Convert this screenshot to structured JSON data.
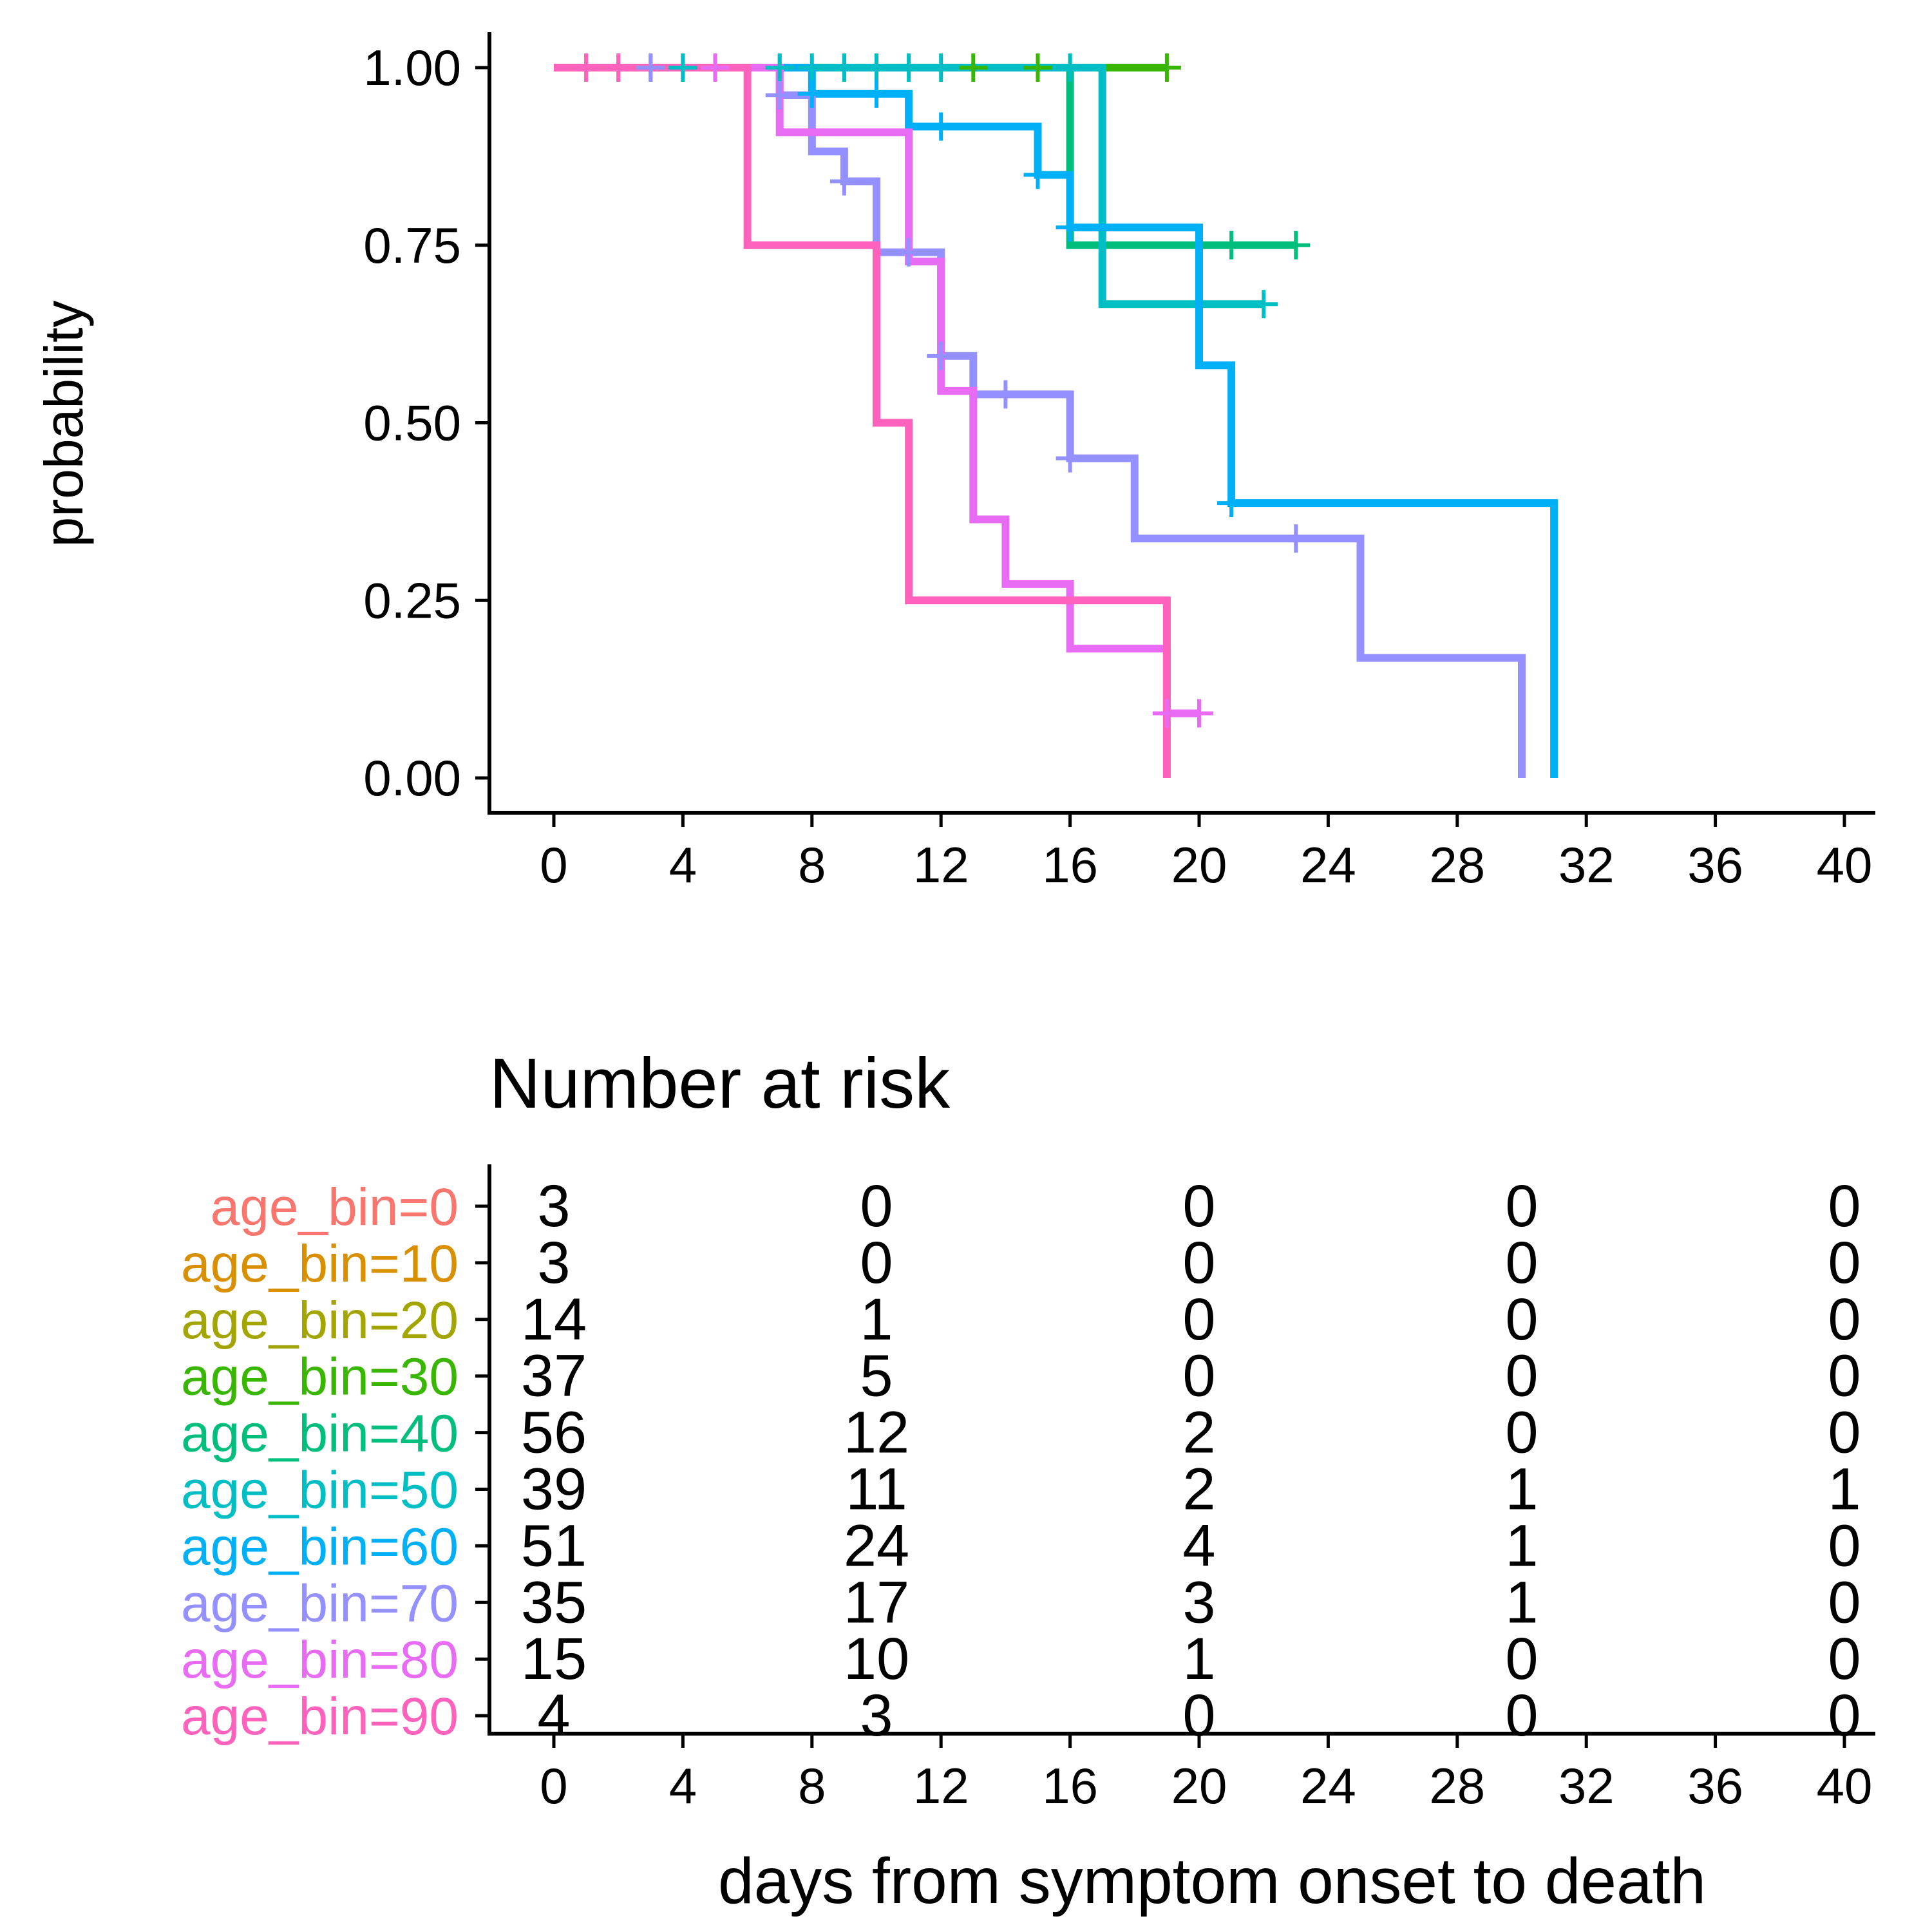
{
  "chart_data": [
    {
      "type": "line",
      "subtype": "kaplan-meier",
      "ylabel": "probability",
      "xlabel": "",
      "xlim": [
        0,
        40
      ],
      "ylim": [
        0,
        1
      ],
      "x_ticks": [
        0,
        4,
        8,
        12,
        16,
        20,
        24,
        28,
        32,
        36,
        40
      ],
      "y_ticks": [
        "0.00",
        "0.25",
        "0.50",
        "0.75",
        "1.00"
      ],
      "grid": false,
      "legend": "none",
      "series": [
        {
          "name": "age_bin=0",
          "color": "#F8766D",
          "steps": [
            [
              0,
              1
            ],
            [
              1,
              1
            ]
          ],
          "censors": [
            [
              1,
              1
            ]
          ]
        },
        {
          "name": "age_bin=10",
          "color": "#D89000",
          "steps": [
            [
              0,
              1
            ],
            [
              2,
              1
            ]
          ],
          "censors": [
            [
              2,
              1
            ]
          ]
        },
        {
          "name": "age_bin=20",
          "color": "#A3A500",
          "steps": [
            [
              0,
              1
            ],
            [
              7,
              1
            ]
          ],
          "censors": [
            [
              1,
              1
            ],
            [
              3,
              1
            ],
            [
              7,
              1
            ]
          ]
        },
        {
          "name": "age_bin=30",
          "color": "#39B600",
          "steps": [
            [
              0,
              1
            ],
            [
              19,
              1
            ]
          ],
          "censors": [
            [
              13,
              1
            ],
            [
              15,
              1
            ],
            [
              19,
              1
            ]
          ]
        },
        {
          "name": "age_bin=40",
          "color": "#00BF7D",
          "steps": [
            [
              0,
              1
            ],
            [
              16,
              1
            ],
            [
              16,
              0.75
            ],
            [
              23,
              0.75
            ]
          ],
          "censors": [
            [
              4,
              1
            ],
            [
              9,
              1
            ],
            [
              16,
              1
            ],
            [
              21,
              0.75
            ],
            [
              23,
              0.75
            ]
          ]
        },
        {
          "name": "age_bin=50",
          "color": "#00BFC4",
          "steps": [
            [
              0,
              1
            ],
            [
              17,
              1
            ],
            [
              17,
              0.667
            ],
            [
              22,
              0.667
            ]
          ],
          "censors": [
            [
              4,
              1
            ],
            [
              7,
              1
            ],
            [
              8,
              1
            ],
            [
              9,
              1
            ],
            [
              10,
              1
            ],
            [
              11,
              1
            ],
            [
              12,
              1
            ],
            [
              16,
              1
            ],
            [
              22,
              0.667
            ]
          ]
        },
        {
          "name": "age_bin=60",
          "color": "#00B0F6",
          "steps": [
            [
              0,
              1
            ],
            [
              8,
              1
            ],
            [
              8,
              0.963
            ],
            [
              11,
              0.963
            ],
            [
              11,
              0.917
            ],
            [
              15,
              0.917
            ],
            [
              15,
              0.849
            ],
            [
              16,
              0.849
            ],
            [
              16,
              0.775
            ],
            [
              20,
              0.775
            ],
            [
              20,
              0.581
            ],
            [
              21,
              0.581
            ],
            [
              21,
              0.387
            ],
            [
              31,
              0.387
            ],
            [
              31,
              0
            ]
          ],
          "censors": [
            [
              8,
              0.963
            ],
            [
              10,
              0.963
            ],
            [
              12,
              0.917
            ],
            [
              15,
              0.849
            ],
            [
              16,
              0.775
            ],
            [
              21,
              0.387
            ]
          ]
        },
        {
          "name": "age_bin=70",
          "color": "#9590FF",
          "steps": [
            [
              0,
              1
            ],
            [
              7,
              1
            ],
            [
              7,
              0.961
            ],
            [
              8,
              0.961
            ],
            [
              8,
              0.882
            ],
            [
              9,
              0.882
            ],
            [
              9,
              0.84
            ],
            [
              10,
              0.84
            ],
            [
              10,
              0.74
            ],
            [
              12,
              0.74
            ],
            [
              12,
              0.594
            ],
            [
              13,
              0.594
            ],
            [
              13,
              0.54
            ],
            [
              16,
              0.54
            ],
            [
              16,
              0.45
            ],
            [
              18,
              0.45
            ],
            [
              18,
              0.337
            ],
            [
              25,
              0.337
            ],
            [
              25,
              0.169
            ],
            [
              30,
              0.169
            ],
            [
              30,
              0
            ]
          ],
          "censors": [
            [
              3,
              1
            ],
            [
              7,
              0.961
            ],
            [
              9,
              0.84
            ],
            [
              11,
              0.74
            ],
            [
              12,
              0.594
            ],
            [
              14,
              0.54
            ],
            [
              16,
              0.45
            ],
            [
              23,
              0.337
            ]
          ]
        },
        {
          "name": "age_bin=80",
          "color": "#E76BF3",
          "steps": [
            [
              0,
              1
            ],
            [
              7,
              1
            ],
            [
              7,
              0.909
            ],
            [
              11,
              0.909
            ],
            [
              11,
              0.727
            ],
            [
              12,
              0.727
            ],
            [
              12,
              0.545
            ],
            [
              13,
              0.545
            ],
            [
              13,
              0.364
            ],
            [
              14,
              0.364
            ],
            [
              14,
              0.273
            ],
            [
              16,
              0.273
            ],
            [
              16,
              0.182
            ],
            [
              19,
              0.182
            ],
            [
              19,
              0.091
            ],
            [
              20,
              0.091
            ]
          ],
          "censors": [
            [
              5,
              1
            ],
            [
              19,
              0.091
            ],
            [
              20,
              0.091
            ]
          ]
        },
        {
          "name": "age_bin=90",
          "color": "#FF62BC",
          "steps": [
            [
              0,
              1
            ],
            [
              6,
              1
            ],
            [
              6,
              0.75
            ],
            [
              10,
              0.75
            ],
            [
              10,
              0.5
            ],
            [
              11,
              0.5
            ],
            [
              11,
              0.25
            ],
            [
              19,
              0.25
            ],
            [
              19,
              0
            ]
          ],
          "censors": [
            [
              1,
              1
            ],
            [
              2,
              1
            ]
          ]
        }
      ]
    },
    {
      "type": "table",
      "title": "Number at risk",
      "xlabel": "days from symptom onset to death",
      "xlim": [
        0,
        40
      ],
      "x_ticks": [
        0,
        4,
        8,
        12,
        16,
        20,
        24,
        28,
        32,
        36,
        40
      ],
      "time_points": [
        0,
        10,
        20,
        30,
        40
      ],
      "rows": [
        {
          "name": "age_bin=0",
          "color": "#F8766D",
          "values": [
            3,
            0,
            0,
            0,
            0
          ]
        },
        {
          "name": "age_bin=10",
          "color": "#D89000",
          "values": [
            3,
            0,
            0,
            0,
            0
          ]
        },
        {
          "name": "age_bin=20",
          "color": "#A3A500",
          "values": [
            14,
            1,
            0,
            0,
            0
          ]
        },
        {
          "name": "age_bin=30",
          "color": "#39B600",
          "values": [
            37,
            5,
            0,
            0,
            0
          ]
        },
        {
          "name": "age_bin=40",
          "color": "#00BF7D",
          "values": [
            56,
            12,
            2,
            0,
            0
          ]
        },
        {
          "name": "age_bin=50",
          "color": "#00BFC4",
          "values": [
            39,
            11,
            2,
            1,
            1
          ]
        },
        {
          "name": "age_bin=60",
          "color": "#00B0F6",
          "values": [
            51,
            24,
            4,
            1,
            0
          ]
        },
        {
          "name": "age_bin=70",
          "color": "#9590FF",
          "values": [
            35,
            17,
            3,
            1,
            0
          ]
        },
        {
          "name": "age_bin=80",
          "color": "#E76BF3",
          "values": [
            15,
            10,
            1,
            0,
            0
          ]
        },
        {
          "name": "age_bin=90",
          "color": "#FF62BC",
          "values": [
            4,
            3,
            0,
            0,
            0
          ]
        }
      ]
    }
  ]
}
